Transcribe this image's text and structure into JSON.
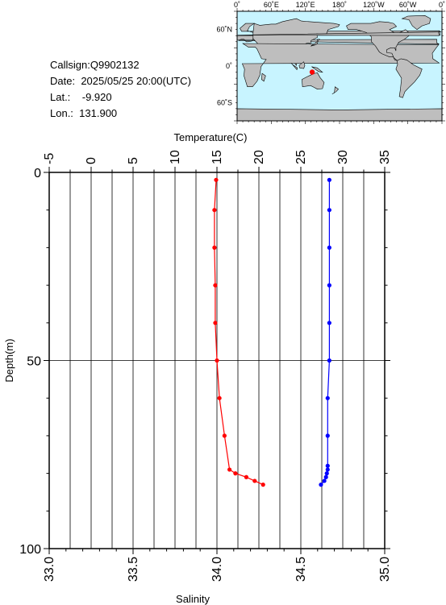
{
  "station": {
    "callsign_label": "Callsign:",
    "callsign": "Q9902132",
    "date_label": "Date:",
    "date": "2025/05/25 20:00(UTC)",
    "lat_label": "Lat.:",
    "lat": "-9.920",
    "lon_label": "Lon.:",
    "lon": "131.900"
  },
  "map": {
    "lon_labels": [
      "0˚",
      "60˚E",
      "120˚E",
      "180˚",
      "120˚W",
      "60˚W",
      "0˚"
    ],
    "lat_labels": [
      "60˚N",
      "0˚",
      "60˚S"
    ],
    "ocean_color": "#c8f4ff",
    "land_color": "#bebebe",
    "marker_color": "#ff0000",
    "marker_lat": -9.92,
    "marker_lon": 131.9
  },
  "chart_data": {
    "type": "line",
    "ylabel": "Depth(m)",
    "x_top_label": "Temperature(C)",
    "x_bottom_label": "Salinity",
    "y_ticks": [
      "0",
      "50",
      "100"
    ],
    "top_ticks": [
      "-5",
      "0",
      "5",
      "10",
      "15",
      "20",
      "25",
      "30",
      "35"
    ],
    "bottom_ticks": [
      "33.0",
      "33.5",
      "34.0",
      "34.5",
      "35.0"
    ],
    "ylim": [
      100,
      0
    ],
    "temperature_lim": [
      -5,
      35
    ],
    "salinity_lim": [
      33.0,
      35.0
    ],
    "grid": true,
    "series": [
      {
        "axis": "temperature",
        "color": "#ff0000",
        "points": [
          [
            14.9,
            2
          ],
          [
            14.7,
            10
          ],
          [
            14.7,
            20
          ],
          [
            14.8,
            30
          ],
          [
            14.8,
            40
          ],
          [
            15.0,
            50
          ],
          [
            15.3,
            60
          ],
          [
            15.9,
            70
          ],
          [
            16.5,
            79
          ],
          [
            17.2,
            80
          ],
          [
            18.5,
            81
          ],
          [
            19.5,
            82
          ],
          [
            20.5,
            83
          ]
        ]
      },
      {
        "axis": "salinity",
        "color": "#0000ff",
        "points": [
          [
            34.67,
            2
          ],
          [
            34.67,
            10
          ],
          [
            34.67,
            20
          ],
          [
            34.67,
            30
          ],
          [
            34.67,
            40
          ],
          [
            34.67,
            50
          ],
          [
            34.66,
            60
          ],
          [
            34.66,
            70
          ],
          [
            34.66,
            78
          ],
          [
            34.66,
            79
          ],
          [
            34.655,
            80
          ],
          [
            34.65,
            81
          ],
          [
            34.64,
            82
          ],
          [
            34.62,
            83
          ]
        ]
      }
    ]
  }
}
